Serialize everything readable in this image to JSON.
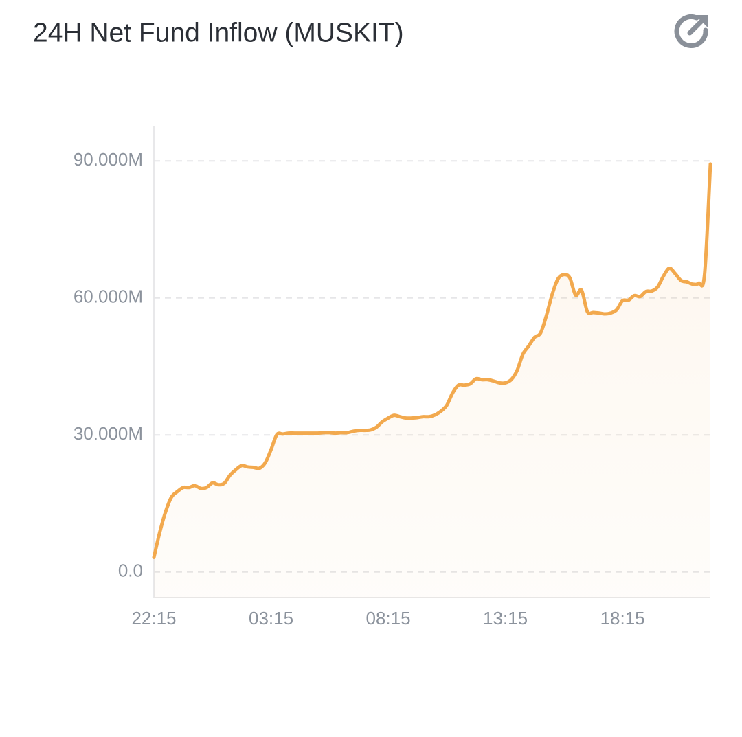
{
  "chart_data": {
    "type": "line",
    "title": "24H Net Fund Inflow (MUSKIT)",
    "categories": [
      "22:15",
      null,
      null,
      null,
      null,
      null,
      null,
      null,
      null,
      null,
      null,
      null,
      null,
      null,
      null,
      null,
      null,
      null,
      null,
      null,
      "03:15",
      null,
      null,
      null,
      null,
      null,
      null,
      null,
      null,
      null,
      null,
      null,
      null,
      null,
      null,
      null,
      null,
      null,
      null,
      null,
      "08:15",
      null,
      null,
      null,
      null,
      null,
      null,
      null,
      null,
      null,
      null,
      null,
      null,
      null,
      null,
      null,
      null,
      null,
      null,
      null,
      "13:15",
      null,
      null,
      null,
      null,
      null,
      null,
      null,
      null,
      null,
      null,
      null,
      null,
      null,
      null,
      null,
      null,
      null,
      null,
      null,
      "18:15",
      null,
      null,
      null,
      null,
      null,
      null,
      null,
      null,
      null,
      null,
      null,
      null,
      null,
      null,
      null
    ],
    "series": [
      {
        "name": "Net Fund Inflow",
        "color": "#f2a94e",
        "values": [
          3.2,
          8.7,
          13.2,
          16.4,
          17.6,
          18.5,
          18.5,
          18.9,
          18.3,
          18.5,
          19.5,
          19.1,
          19.4,
          21.2,
          22.4,
          23.3,
          23.0,
          22.9,
          22.7,
          23.9,
          26.8,
          30.1,
          30.2,
          30.4,
          30.4,
          30.4,
          30.4,
          30.4,
          30.4,
          30.5,
          30.5,
          30.4,
          30.5,
          30.5,
          30.8,
          31.0,
          31.0,
          31.1,
          31.7,
          32.9,
          33.7,
          34.3,
          34.0,
          33.7,
          33.7,
          33.8,
          34.0,
          34.0,
          34.4,
          35.2,
          36.5,
          39.2,
          40.9,
          40.9,
          41.2,
          42.3,
          42.1,
          42.1,
          41.8,
          41.4,
          41.4,
          42.1,
          44.1,
          47.7,
          49.5,
          51.4,
          52.3,
          56.1,
          60.8,
          64.2,
          65.1,
          64.4,
          60.6,
          61.7,
          57.0,
          56.8,
          56.7,
          56.5,
          56.7,
          57.4,
          59.4,
          59.5,
          60.5,
          60.3,
          61.4,
          61.5,
          62.4,
          64.8,
          66.5,
          65.3,
          63.8,
          63.5,
          63.0,
          63.2,
          65.1,
          89.3
        ]
      }
    ],
    "ylim": [
      -5.6,
      97.7
    ],
    "yticks": [
      {
        "value": 0,
        "label": "0.0"
      },
      {
        "value": 30,
        "label": "30.000M"
      },
      {
        "value": 60,
        "label": "60.000M"
      },
      {
        "value": 90,
        "label": "90.000M"
      }
    ],
    "grid": true
  }
}
